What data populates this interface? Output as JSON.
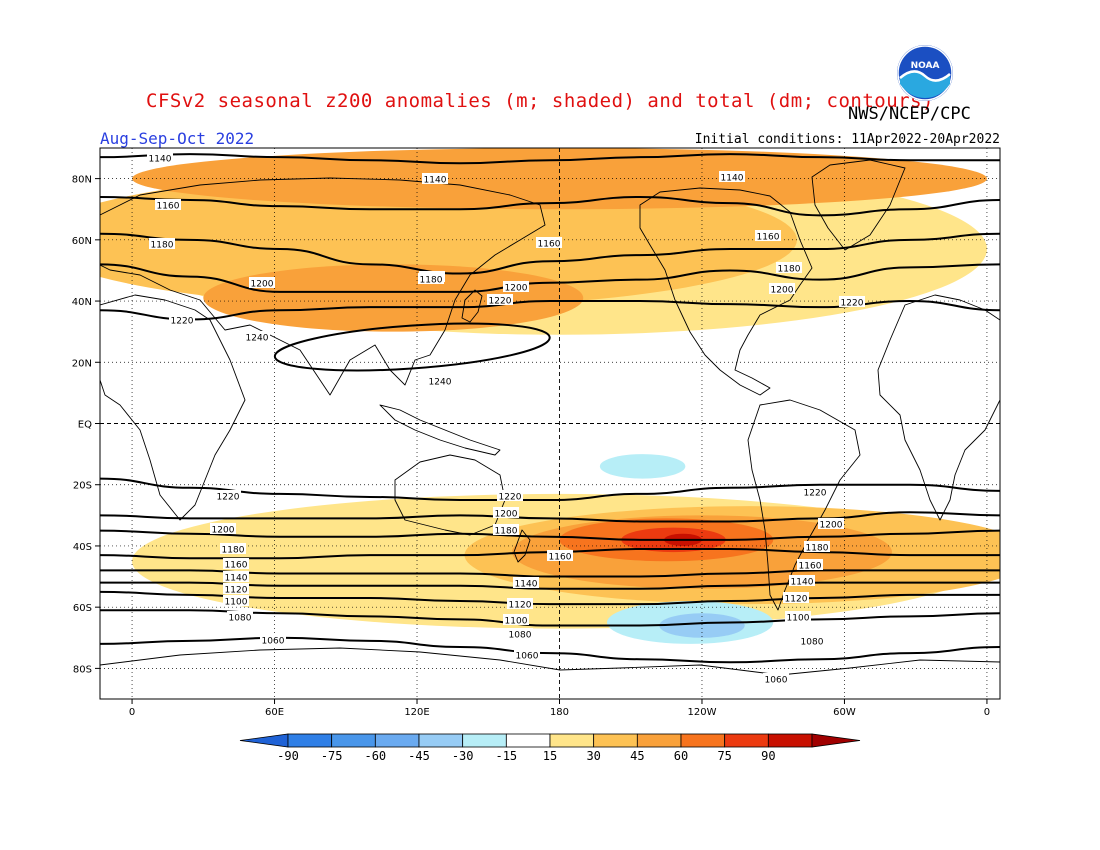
{
  "title": "CFSv2 seasonal z200 anomalies (m; shaded) and total (dm; contours)",
  "credit": "NWS/NCEP/CPC",
  "season": "Aug-Sep-Oct 2022",
  "initial_conditions": "Initial conditions: 11Apr2022-20Apr2022",
  "logo_text": "NOAA",
  "axes": {
    "lat_labels": [
      "80N",
      "60N",
      "40N",
      "20N",
      "EQ",
      "20S",
      "40S",
      "60S",
      "80S"
    ],
    "lat_values": [
      80,
      60,
      40,
      20,
      0,
      -20,
      -40,
      -60,
      -80
    ],
    "lon_labels": [
      "0",
      "60E",
      "120E",
      "180",
      "120W",
      "60W",
      "0"
    ],
    "lon_values": [
      0,
      60,
      120,
      180,
      240,
      300,
      360
    ]
  },
  "colorbar": {
    "levels": [
      "-90",
      "-75",
      "-60",
      "-45",
      "-30",
      "-15",
      "15",
      "30",
      "45",
      "60",
      "75",
      "90"
    ],
    "colors": [
      "#1f62d6",
      "#2f7fe6",
      "#4996ea",
      "#6aaaf0",
      "#97ccf5",
      "#b7eef7",
      "#ffffff",
      "#ffe58a",
      "#fdc254",
      "#f9a13a",
      "#f7741e",
      "#ec3a10",
      "#c81000",
      "#a00000"
    ]
  },
  "contours": [
    {
      "level": "1140",
      "lat": [
        87,
        88,
        87,
        86,
        85,
        86,
        87,
        88,
        87,
        86,
        86
      ],
      "labels": [
        [
          160,
          158
        ],
        [
          435,
          179
        ],
        [
          732,
          177
        ]
      ]
    },
    {
      "level": "1160",
      "lat": [
        74,
        73,
        71,
        70,
        70,
        72,
        74,
        72,
        68,
        70,
        73
      ],
      "labels": [
        [
          168,
          205
        ],
        [
          549,
          243
        ],
        [
          768,
          236
        ]
      ]
    },
    {
      "level": "1180",
      "lat": [
        62,
        60,
        57,
        52,
        49,
        53,
        55,
        57,
        57,
        60,
        62
      ],
      "labels": [
        [
          162,
          244
        ],
        [
          432,
          277
        ],
        [
          789,
          268
        ],
        [
          431,
          279
        ]
      ]
    },
    {
      "level": "1200",
      "lat": [
        52,
        48,
        43,
        43,
        43,
        46,
        47,
        50,
        47,
        51,
        52
      ],
      "labels": [
        [
          262,
          283
        ],
        [
          516,
          287
        ],
        [
          782,
          289
        ]
      ]
    },
    {
      "level": "1220",
      "lat": [
        37,
        34,
        37,
        38,
        38,
        40,
        40,
        39,
        38,
        40,
        37
      ],
      "labels": [
        [
          182,
          320
        ],
        [
          500,
          300
        ],
        [
          852,
          302
        ]
      ]
    },
    {
      "level": "1220",
      "lat": [
        -18,
        -21,
        -23,
        -24,
        -25,
        -25,
        -23,
        -21,
        -20,
        -20,
        -22
      ],
      "labels": [
        [
          228,
          496
        ],
        [
          510,
          496
        ],
        [
          815,
          492
        ]
      ]
    },
    {
      "level": "1200",
      "lat": [
        -30,
        -31,
        -31,
        -31,
        -30,
        -31,
        -32,
        -32,
        -31,
        -29,
        -30
      ],
      "labels": [
        [
          223,
          529
        ],
        [
          506,
          513
        ],
        [
          831,
          524
        ]
      ]
    },
    {
      "level": "1180",
      "lat": [
        -35,
        -36,
        -37,
        -37,
        -36,
        -37,
        -38,
        -38,
        -37,
        -36,
        -35
      ],
      "labels": [
        [
          233,
          549
        ],
        [
          506,
          530
        ],
        [
          817,
          547
        ]
      ]
    },
    {
      "level": "1160",
      "lat": [
        -43,
        -44,
        -44,
        -43,
        -43,
        -42,
        -41,
        -41,
        -42,
        -43,
        -43
      ],
      "labels": [
        [
          236,
          564
        ],
        [
          560,
          556
        ],
        [
          810,
          565
        ]
      ]
    },
    {
      "level": "1140",
      "lat": [
        -48,
        -48,
        -49,
        -49,
        -49,
        -50,
        -50,
        -49,
        -48,
        -48,
        -48
      ],
      "labels": [
        [
          236,
          577
        ],
        [
          526,
          583
        ],
        [
          802,
          581
        ]
      ]
    },
    {
      "level": "1120",
      "lat": [
        -52,
        -52,
        -53,
        -53,
        -53,
        -54,
        -54,
        -53,
        -52,
        -52,
        -52
      ],
      "labels": [
        [
          236,
          589
        ],
        [
          520,
          604
        ],
        [
          796,
          598
        ]
      ]
    },
    {
      "level": "1100",
      "lat": [
        -55,
        -56,
        -57,
        -57,
        -58,
        -59,
        -59,
        -58,
        -57,
        -56,
        -56
      ],
      "labels": [
        [
          236,
          601
        ],
        [
          516,
          620
        ],
        [
          798,
          617
        ]
      ]
    },
    {
      "level": "1080",
      "lat": [
        -61,
        -61,
        -62,
        -63,
        -64,
        -66,
        -66,
        -65,
        -64,
        -63,
        -62
      ],
      "labels": [
        [
          240,
          617
        ],
        [
          520,
          634
        ],
        [
          812,
          641
        ]
      ]
    },
    {
      "level": "1060",
      "lat": [
        -72,
        -71,
        -70,
        -71,
        -73,
        -75,
        -77,
        -78,
        -77,
        -75,
        -73
      ],
      "labels": [
        [
          273,
          640
        ],
        [
          527,
          655
        ],
        [
          776,
          679
        ]
      ]
    }
  ],
  "closed_contours": [
    {
      "level": "1240",
      "center_lon": 118,
      "center_lat": 25,
      "rx_deg": 58,
      "ry_deg": 7,
      "labels": [
        [
          257,
          337
        ],
        [
          440,
          381
        ]
      ]
    }
  ],
  "anomaly_regions": [
    {
      "value": "15",
      "color": "#ffe58a",
      "center": [
        180,
        57
      ],
      "radii": [
        180,
        28
      ]
    },
    {
      "value": "15",
      "color": "#ffe58a",
      "center": [
        180,
        -45
      ],
      "radii": [
        180,
        22
      ]
    },
    {
      "value": "30",
      "color": "#fdc254",
      "center": [
        120,
        60
      ],
      "radii": [
        160,
        22
      ]
    },
    {
      "value": "30",
      "color": "#fdc254",
      "center": [
        260,
        -43
      ],
      "radii": [
        120,
        16
      ]
    },
    {
      "value": "45",
      "color": "#f9a13a",
      "center": [
        180,
        80
      ],
      "radii": [
        180,
        10
      ]
    },
    {
      "value": "45",
      "color": "#f9a13a",
      "center": [
        110,
        41
      ],
      "radii": [
        80,
        11
      ]
    },
    {
      "value": "45",
      "color": "#f9a13a",
      "center": [
        240,
        -42
      ],
      "radii": [
        80,
        12
      ]
    },
    {
      "value": "60",
      "color": "#f7741e",
      "center": [
        225,
        -38
      ],
      "radii": [
        45,
        7
      ]
    },
    {
      "value": "75",
      "color": "#ec3a10",
      "center": [
        228,
        -38
      ],
      "radii": [
        22,
        4
      ]
    },
    {
      "value": "90",
      "color": "#c81000",
      "center": [
        232,
        -38
      ],
      "radii": [
        8,
        2
      ]
    },
    {
      "value": "-15",
      "color": "#b7eef7",
      "center": [
        215,
        -14
      ],
      "radii": [
        18,
        4
      ]
    },
    {
      "value": "-15",
      "color": "#b7eef7",
      "center": [
        235,
        -65
      ],
      "radii": [
        35,
        7
      ]
    },
    {
      "value": "-30",
      "color": "#97ccf5",
      "center": [
        240,
        -66
      ],
      "radii": [
        18,
        4
      ]
    }
  ]
}
